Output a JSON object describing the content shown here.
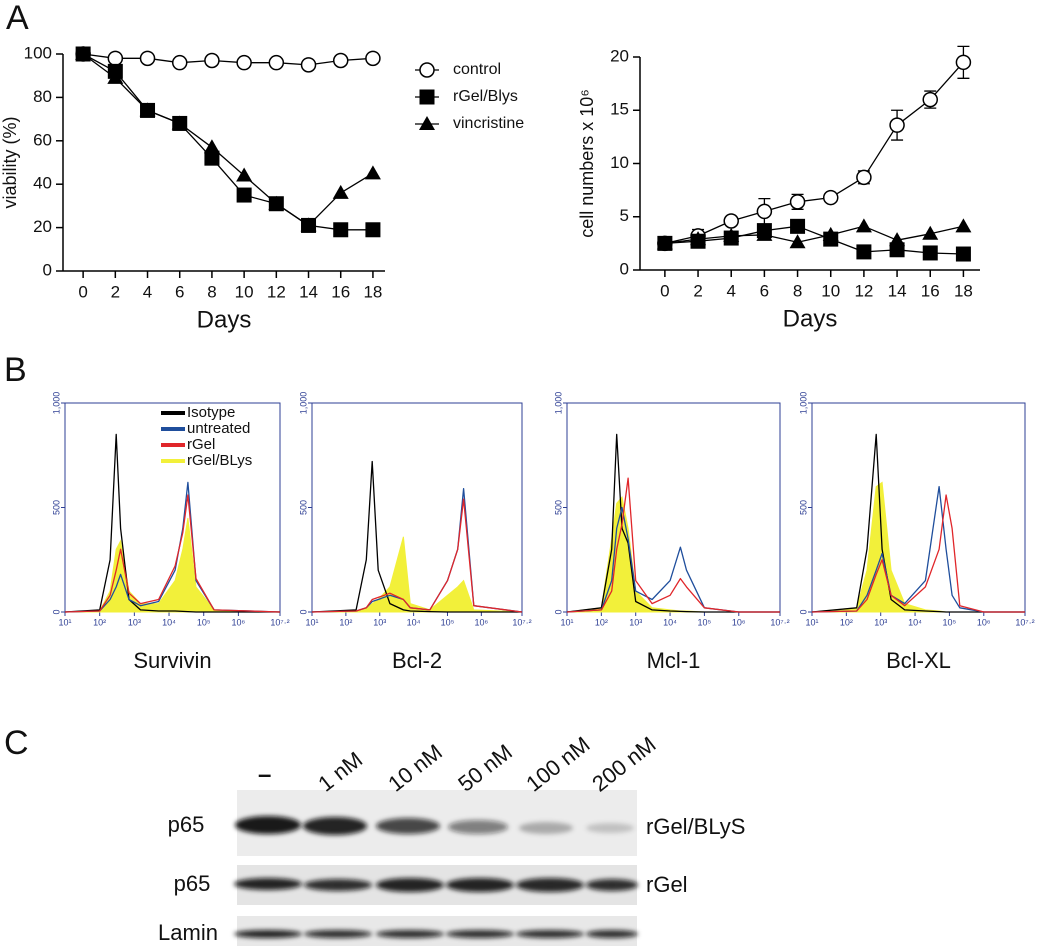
{
  "panel_labels": [
    "A",
    "B",
    "C"
  ],
  "chart_data": [
    {
      "type": "line",
      "x_label": "Days",
      "y_label": "viability (%)",
      "x": [
        0,
        2,
        4,
        6,
        8,
        10,
        12,
        14,
        16,
        18
      ],
      "xlim": [
        -1.25,
        18.75
      ],
      "xticks": [
        0,
        2,
        4,
        6,
        8,
        10,
        12,
        14,
        16,
        18
      ],
      "ylim": [
        0,
        100
      ],
      "yticks": [
        0,
        20,
        40,
        60,
        80,
        100
      ],
      "legend": "outside-right",
      "series": [
        {
          "name": "control",
          "color": "#000000",
          "marker": "circle-open",
          "values": [
            100,
            98,
            98,
            96,
            97,
            96,
            96,
            95,
            97,
            98
          ]
        },
        {
          "name": "rGel/Blys",
          "color": "#000000",
          "marker": "square",
          "values": [
            100,
            92,
            74,
            68,
            52,
            35,
            31,
            21,
            19,
            19
          ]
        },
        {
          "name": "vincristine",
          "color": "#000000",
          "marker": "triangle",
          "values": [
            100,
            89,
            74,
            68,
            57,
            44,
            31,
            21,
            36,
            45
          ]
        }
      ]
    },
    {
      "type": "line",
      "x_label": "Days",
      "y_label": "cell numbers x 10⁶",
      "x": [
        0,
        2,
        4,
        6,
        8,
        10,
        12,
        14,
        16,
        18
      ],
      "xlim": [
        -1.5,
        19
      ],
      "xticks": [
        0,
        2,
        4,
        6,
        8,
        10,
        12,
        14,
        16,
        18
      ],
      "ylim": [
        0,
        20
      ],
      "yticks": [
        0,
        5,
        10,
        15,
        20
      ],
      "series": [
        {
          "color": "#000000",
          "marker": "circle-open",
          "values": [
            2.5,
            3.2,
            4.6,
            5.5,
            6.4,
            6.8,
            8.7,
            13.6,
            16,
            19.5
          ],
          "errors": [
            0.3,
            0.6,
            0.3,
            1.2,
            0.7,
            0.3,
            0.6,
            1.4,
            0.8,
            1.5
          ]
        },
        {
          "color": "#000000",
          "marker": "square",
          "values": [
            2.5,
            2.7,
            3.0,
            3.7,
            4.1,
            2.9,
            1.7,
            1.9,
            1.6,
            1.5
          ]
        },
        {
          "color": "#000000",
          "marker": "triangle",
          "values": [
            2.5,
            2.9,
            3.2,
            3.3,
            2.6,
            3.3,
            4.1,
            2.8,
            3.4,
            4.1
          ]
        }
      ]
    },
    {
      "type": "line",
      "x_label": "Survivin",
      "xscale": "log",
      "frame": "box",
      "axis_color": "#2e3f94",
      "legend": "top-right",
      "x": [
        10,
        100,
        200,
        300,
        400,
        700,
        1500,
        5000,
        15000,
        25000,
        35000,
        60000,
        200000,
        15848932
      ],
      "xlim": [
        10,
        15848932
      ],
      "xticks": [
        {
          "value": 10,
          "label": "10¹"
        },
        {
          "value": 100,
          "label": "10²"
        },
        {
          "value": 1000,
          "label": "10³"
        },
        {
          "value": 10000,
          "label": "10⁴"
        },
        {
          "value": 100000,
          "label": "10⁵"
        },
        {
          "value": 1000000,
          "label": "10⁶"
        },
        {
          "value": 15848932,
          "label": "10⁷·²"
        }
      ],
      "ylim": [
        0,
        1000
      ],
      "yticks": [
        0,
        500,
        {
          "value": 1000,
          "label": "1,000"
        }
      ],
      "series": [
        {
          "name": "Isotype",
          "color": "#000000",
          "values": [
            0,
            10,
            250,
            850,
            400,
            60,
            10,
            5,
            5,
            3,
            2,
            0,
            0,
            0
          ]
        },
        {
          "name": "untreated",
          "color": "#1f4e9c",
          "values": [
            0,
            5,
            60,
            120,
            180,
            60,
            30,
            50,
            200,
            400,
            620,
            150,
            10,
            0
          ]
        },
        {
          "name": "rGel",
          "color": "#e0262a",
          "values": [
            0,
            5,
            80,
            200,
            300,
            90,
            40,
            60,
            220,
            380,
            560,
            160,
            10,
            0
          ]
        },
        {
          "name": "rGel/BLys",
          "color": "#f2f03a",
          "filled": true,
          "values": [
            0,
            5,
            100,
            300,
            340,
            100,
            40,
            40,
            150,
            300,
            450,
            120,
            10,
            0
          ]
        }
      ]
    },
    {
      "type": "line",
      "x_label": "Bcl-2",
      "xscale": "log",
      "frame": "box",
      "axis_color": "#2e3f94",
      "x": [
        10,
        200,
        400,
        600,
        900,
        2000,
        5000,
        8000,
        30000,
        100000,
        200000,
        300000,
        600000,
        15848932
      ],
      "xlim": [
        10,
        15848932
      ],
      "xticks": [
        {
          "value": 10,
          "label": "10¹"
        },
        {
          "value": 100,
          "label": "10²"
        },
        {
          "value": 1000,
          "label": "10³"
        },
        {
          "value": 10000,
          "label": "10⁴"
        },
        {
          "value": 100000,
          "label": "10⁵"
        },
        {
          "value": 1000000,
          "label": "10⁶"
        },
        {
          "value": 15848932,
          "label": "10⁷·²"
        }
      ],
      "ylim": [
        0,
        1000
      ],
      "yticks": [
        0,
        500,
        {
          "value": 1000,
          "label": "1,000"
        }
      ],
      "series": [
        {
          "color": "#000000",
          "values": [
            0,
            10,
            250,
            720,
            200,
            40,
            10,
            5,
            2,
            0,
            0,
            0,
            0,
            0
          ]
        },
        {
          "color": "#1f4e9c",
          "values": [
            0,
            5,
            20,
            50,
            60,
            80,
            60,
            20,
            10,
            150,
            300,
            590,
            30,
            0
          ]
        },
        {
          "color": "#e0262a",
          "values": [
            0,
            5,
            20,
            60,
            70,
            90,
            60,
            20,
            10,
            150,
            300,
            540,
            30,
            0
          ]
        },
        {
          "color": "#f2f03a",
          "filled": true,
          "values": [
            0,
            5,
            20,
            40,
            60,
            120,
            360,
            40,
            10,
            80,
            120,
            150,
            10,
            0
          ]
        }
      ]
    },
    {
      "type": "line",
      "x_label": "Mcl-1",
      "xscale": "log",
      "frame": "box",
      "axis_color": "#2e3f94",
      "x": [
        10,
        100,
        200,
        280,
        400,
        600,
        1000,
        3000,
        10000,
        20000,
        30000,
        100000,
        1000000,
        15848932
      ],
      "xlim": [
        10,
        15848932
      ],
      "xticks": [
        {
          "value": 10,
          "label": "10¹"
        },
        {
          "value": 100,
          "label": "10²"
        },
        {
          "value": 1000,
          "label": "10³"
        },
        {
          "value": 10000,
          "label": "10⁴"
        },
        {
          "value": 100000,
          "label": "10⁵"
        },
        {
          "value": 1000000,
          "label": "10⁶"
        },
        {
          "value": 15848932,
          "label": "10⁷·²"
        }
      ],
      "ylim": [
        0,
        1000
      ],
      "yticks": [
        0,
        500,
        {
          "value": 1000,
          "label": "1,000"
        }
      ],
      "series": [
        {
          "color": "#000000",
          "values": [
            0,
            20,
            300,
            850,
            400,
            330,
            50,
            10,
            5,
            3,
            2,
            0,
            0,
            0
          ]
        },
        {
          "color": "#1f4e9c",
          "values": [
            0,
            10,
            150,
            400,
            500,
            350,
            100,
            60,
            150,
            310,
            200,
            20,
            0,
            0
          ]
        },
        {
          "color": "#e0262a",
          "values": [
            0,
            10,
            100,
            300,
            420,
            640,
            150,
            40,
            80,
            160,
            120,
            20,
            0,
            0
          ]
        },
        {
          "color": "#f2f03a",
          "filled": true,
          "values": [
            0,
            20,
            350,
            520,
            550,
            400,
            100,
            20,
            10,
            5,
            5,
            0,
            0,
            0
          ]
        }
      ]
    },
    {
      "type": "line",
      "x_label": "Bcl-XL",
      "xscale": "log",
      "frame": "box",
      "axis_color": "#2e3f94",
      "x": [
        10,
        200,
        400,
        740,
        1100,
        2000,
        5000,
        20000,
        50000,
        80000,
        120000,
        200000,
        1000000,
        15848932
      ],
      "xlim": [
        10,
        15848932
      ],
      "xticks": [
        {
          "value": 10,
          "label": "10¹"
        },
        {
          "value": 100,
          "label": "10²"
        },
        {
          "value": 1000,
          "label": "10³"
        },
        {
          "value": 10000,
          "label": "10⁴"
        },
        {
          "value": 100000,
          "label": "10⁵"
        },
        {
          "value": 1000000,
          "label": "10⁶"
        },
        {
          "value": 15848932,
          "label": "10⁷·²"
        }
      ],
      "ylim": [
        0,
        1000
      ],
      "yticks": [
        0,
        500,
        {
          "value": 1000,
          "label": "1,000"
        }
      ],
      "series": [
        {
          "color": "#000000",
          "values": [
            0,
            20,
            300,
            850,
            300,
            60,
            10,
            5,
            2,
            0,
            0,
            0,
            0,
            0
          ]
        },
        {
          "color": "#1f4e9c",
          "values": [
            0,
            5,
            80,
            200,
            280,
            80,
            40,
            150,
            600,
            300,
            80,
            20,
            0,
            0
          ]
        },
        {
          "color": "#e0262a",
          "values": [
            0,
            5,
            60,
            180,
            250,
            80,
            30,
            120,
            300,
            560,
            400,
            30,
            0,
            0
          ]
        },
        {
          "color": "#f2f03a",
          "filled": true,
          "values": [
            0,
            20,
            200,
            600,
            620,
            200,
            40,
            10,
            5,
            0,
            0,
            0,
            0,
            0
          ]
        }
      ]
    }
  ],
  "blot": {
    "lanes": [
      "–",
      "1 nM",
      "10 nM",
      "50 nM",
      "100 nM",
      "200 nM"
    ],
    "rows": [
      {
        "label": "p65",
        "treatment": "rGel/BLyS"
      },
      {
        "label": "p65",
        "treatment": "rGel"
      },
      {
        "label": "Lamin"
      }
    ]
  }
}
